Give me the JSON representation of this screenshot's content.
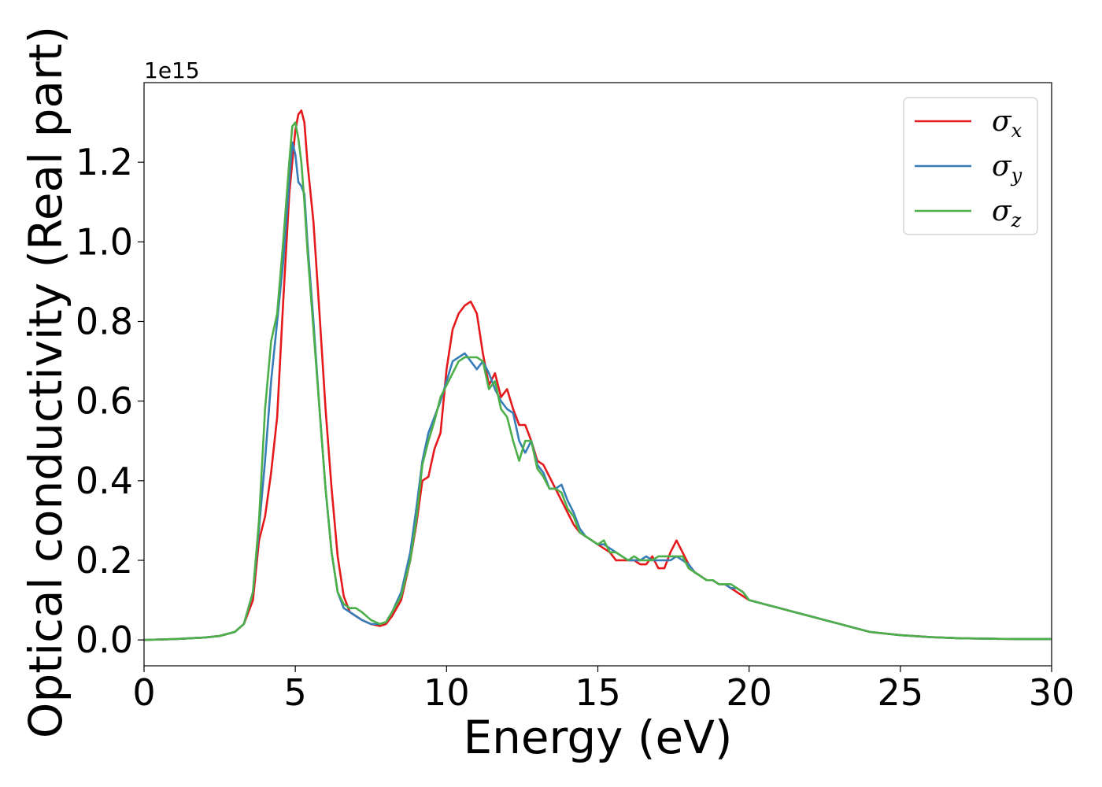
{
  "chart_data": {
    "type": "line",
    "title": "",
    "xlabel": "Energy (eV)",
    "ylabel": "Optical conductivity (Real part)",
    "y_offset_label": "1e15",
    "xlim": [
      0,
      30
    ],
    "ylim": [
      -0.065,
      1.4
    ],
    "xticks": [
      0,
      5,
      10,
      15,
      20,
      25,
      30
    ],
    "xtick_labels": [
      "0",
      "5",
      "10",
      "15",
      "20",
      "25",
      "30"
    ],
    "yticks": [
      0.0,
      0.2,
      0.4,
      0.6,
      0.8,
      1.0,
      1.2
    ],
    "ytick_labels": [
      "0.0",
      "0.2",
      "0.4",
      "0.6",
      "0.8",
      "1.0",
      "1.2"
    ],
    "grid": false,
    "legend_position": "top-right",
    "series": [
      {
        "name": "σx",
        "symbol": "σ",
        "subscript": "x",
        "color": "#e41a1c",
        "x": [
          0,
          1,
          2,
          2.5,
          3,
          3.3,
          3.6,
          3.8,
          4.0,
          4.2,
          4.4,
          4.6,
          4.8,
          5.0,
          5.1,
          5.2,
          5.3,
          5.4,
          5.6,
          5.8,
          6.0,
          6.2,
          6.4,
          6.6,
          6.8,
          7.0,
          7.2,
          7.5,
          7.8,
          8.0,
          8.2,
          8.5,
          8.8,
          9.0,
          9.2,
          9.4,
          9.6,
          9.8,
          10.0,
          10.2,
          10.4,
          10.6,
          10.8,
          11.0,
          11.2,
          11.4,
          11.6,
          11.8,
          12.0,
          12.2,
          12.4,
          12.6,
          12.8,
          13.0,
          13.2,
          13.4,
          13.6,
          13.8,
          14.0,
          14.2,
          14.4,
          14.6,
          14.8,
          15.0,
          15.2,
          15.4,
          15.6,
          15.8,
          16.0,
          16.2,
          16.4,
          16.6,
          16.8,
          17.0,
          17.2,
          17.4,
          17.6,
          17.8,
          18.0,
          18.2,
          18.4,
          18.6,
          18.8,
          19.0,
          19.2,
          19.4,
          19.6,
          19.8,
          20.0,
          20.5,
          21.0,
          21.5,
          22.0,
          22.5,
          23.0,
          23.5,
          24.0,
          25.0,
          26.0,
          27.0,
          28.0,
          29.0,
          30.0
        ],
        "values": [
          0.0,
          0.002,
          0.006,
          0.01,
          0.02,
          0.04,
          0.1,
          0.25,
          0.31,
          0.42,
          0.56,
          0.85,
          1.12,
          1.28,
          1.32,
          1.33,
          1.3,
          1.2,
          1.05,
          0.82,
          0.58,
          0.38,
          0.21,
          0.11,
          0.07,
          0.06,
          0.05,
          0.04,
          0.035,
          0.04,
          0.06,
          0.1,
          0.2,
          0.29,
          0.4,
          0.41,
          0.48,
          0.52,
          0.68,
          0.78,
          0.82,
          0.84,
          0.85,
          0.82,
          0.72,
          0.64,
          0.67,
          0.61,
          0.63,
          0.58,
          0.54,
          0.54,
          0.5,
          0.45,
          0.44,
          0.41,
          0.38,
          0.35,
          0.32,
          0.29,
          0.27,
          0.26,
          0.25,
          0.24,
          0.23,
          0.22,
          0.2,
          0.2,
          0.2,
          0.2,
          0.19,
          0.19,
          0.21,
          0.18,
          0.18,
          0.22,
          0.25,
          0.22,
          0.19,
          0.17,
          0.16,
          0.15,
          0.15,
          0.14,
          0.14,
          0.13,
          0.12,
          0.11,
          0.1,
          0.09,
          0.08,
          0.07,
          0.06,
          0.05,
          0.04,
          0.03,
          0.02,
          0.012,
          0.007,
          0.004,
          0.003,
          0.002,
          0.002
        ]
      },
      {
        "name": "σy",
        "symbol": "σ",
        "subscript": "y",
        "color": "#377eb8",
        "x": [
          0,
          1,
          2,
          2.5,
          3,
          3.3,
          3.6,
          3.8,
          4.0,
          4.2,
          4.4,
          4.6,
          4.8,
          4.9,
          5.0,
          5.1,
          5.2,
          5.3,
          5.4,
          5.6,
          5.8,
          6.0,
          6.2,
          6.4,
          6.6,
          6.8,
          7.0,
          7.2,
          7.5,
          7.8,
          8.0,
          8.2,
          8.5,
          8.8,
          9.0,
          9.2,
          9.4,
          9.6,
          9.8,
          10.0,
          10.2,
          10.4,
          10.6,
          10.8,
          11.0,
          11.2,
          11.4,
          11.6,
          11.8,
          12.0,
          12.2,
          12.4,
          12.6,
          12.8,
          13.0,
          13.2,
          13.4,
          13.6,
          13.8,
          14.0,
          14.2,
          14.4,
          14.6,
          14.8,
          15.0,
          15.2,
          15.4,
          15.6,
          15.8,
          16.0,
          16.2,
          16.4,
          16.6,
          16.8,
          17.0,
          17.2,
          17.4,
          17.6,
          17.8,
          18.0,
          18.2,
          18.4,
          18.6,
          18.8,
          19.0,
          19.2,
          19.4,
          19.6,
          19.8,
          20.0,
          20.5,
          21.0,
          21.5,
          22.0,
          22.5,
          23.0,
          23.5,
          24.0,
          25.0,
          26.0,
          27.0,
          28.0,
          29.0,
          30.0
        ],
        "values": [
          0.0,
          0.002,
          0.006,
          0.01,
          0.02,
          0.04,
          0.12,
          0.28,
          0.45,
          0.65,
          0.8,
          0.95,
          1.15,
          1.25,
          1.22,
          1.15,
          1.14,
          1.12,
          1.0,
          0.8,
          0.58,
          0.38,
          0.22,
          0.12,
          0.08,
          0.07,
          0.06,
          0.05,
          0.04,
          0.04,
          0.045,
          0.07,
          0.12,
          0.22,
          0.33,
          0.45,
          0.52,
          0.56,
          0.6,
          0.65,
          0.7,
          0.71,
          0.72,
          0.7,
          0.68,
          0.7,
          0.67,
          0.63,
          0.6,
          0.58,
          0.57,
          0.5,
          0.47,
          0.5,
          0.44,
          0.42,
          0.38,
          0.38,
          0.39,
          0.35,
          0.32,
          0.28,
          0.26,
          0.25,
          0.24,
          0.24,
          0.23,
          0.22,
          0.21,
          0.2,
          0.2,
          0.2,
          0.21,
          0.2,
          0.2,
          0.2,
          0.2,
          0.21,
          0.2,
          0.19,
          0.17,
          0.16,
          0.15,
          0.15,
          0.14,
          0.14,
          0.13,
          0.13,
          0.12,
          0.1,
          0.09,
          0.08,
          0.07,
          0.06,
          0.05,
          0.04,
          0.03,
          0.02,
          0.012,
          0.007,
          0.004,
          0.003,
          0.002,
          0.002
        ]
      },
      {
        "name": "σz",
        "symbol": "σ",
        "subscript": "z",
        "color": "#4daf4a",
        "x": [
          0,
          1,
          2,
          2.5,
          3,
          3.3,
          3.6,
          3.8,
          4.0,
          4.2,
          4.4,
          4.6,
          4.8,
          4.9,
          5.0,
          5.1,
          5.2,
          5.3,
          5.4,
          5.6,
          5.8,
          6.0,
          6.2,
          6.4,
          6.6,
          6.8,
          7.0,
          7.2,
          7.5,
          7.8,
          8.0,
          8.2,
          8.5,
          8.8,
          9.0,
          9.2,
          9.4,
          9.6,
          9.8,
          10.0,
          10.2,
          10.4,
          10.6,
          10.8,
          11.0,
          11.2,
          11.4,
          11.6,
          11.8,
          12.0,
          12.2,
          12.4,
          12.6,
          12.8,
          13.0,
          13.2,
          13.4,
          13.6,
          13.8,
          14.0,
          14.2,
          14.4,
          14.6,
          14.8,
          15.0,
          15.2,
          15.4,
          15.6,
          15.8,
          16.0,
          16.2,
          16.4,
          16.6,
          16.8,
          17.0,
          17.2,
          17.4,
          17.6,
          17.8,
          18.0,
          18.2,
          18.4,
          18.6,
          18.8,
          19.0,
          19.2,
          19.4,
          19.6,
          19.8,
          20.0,
          20.5,
          21.0,
          21.5,
          22.0,
          22.5,
          23.0,
          23.5,
          24.0,
          25.0,
          26.0,
          27.0,
          28.0,
          29.0,
          30.0
        ],
        "values": [
          0.0,
          0.002,
          0.006,
          0.01,
          0.02,
          0.04,
          0.12,
          0.3,
          0.58,
          0.75,
          0.82,
          1.0,
          1.2,
          1.29,
          1.3,
          1.26,
          1.2,
          1.1,
          0.98,
          0.78,
          0.58,
          0.38,
          0.22,
          0.12,
          0.09,
          0.08,
          0.08,
          0.07,
          0.05,
          0.04,
          0.045,
          0.07,
          0.11,
          0.2,
          0.3,
          0.44,
          0.5,
          0.55,
          0.61,
          0.64,
          0.67,
          0.7,
          0.71,
          0.71,
          0.71,
          0.7,
          0.63,
          0.65,
          0.58,
          0.56,
          0.5,
          0.45,
          0.5,
          0.5,
          0.43,
          0.41,
          0.38,
          0.38,
          0.37,
          0.33,
          0.31,
          0.27,
          0.26,
          0.25,
          0.24,
          0.25,
          0.22,
          0.22,
          0.21,
          0.2,
          0.21,
          0.2,
          0.2,
          0.2,
          0.21,
          0.21,
          0.21,
          0.21,
          0.21,
          0.18,
          0.17,
          0.16,
          0.15,
          0.15,
          0.14,
          0.14,
          0.14,
          0.13,
          0.12,
          0.1,
          0.09,
          0.08,
          0.07,
          0.06,
          0.05,
          0.04,
          0.03,
          0.02,
          0.012,
          0.007,
          0.004,
          0.003,
          0.002,
          0.002
        ]
      }
    ]
  }
}
